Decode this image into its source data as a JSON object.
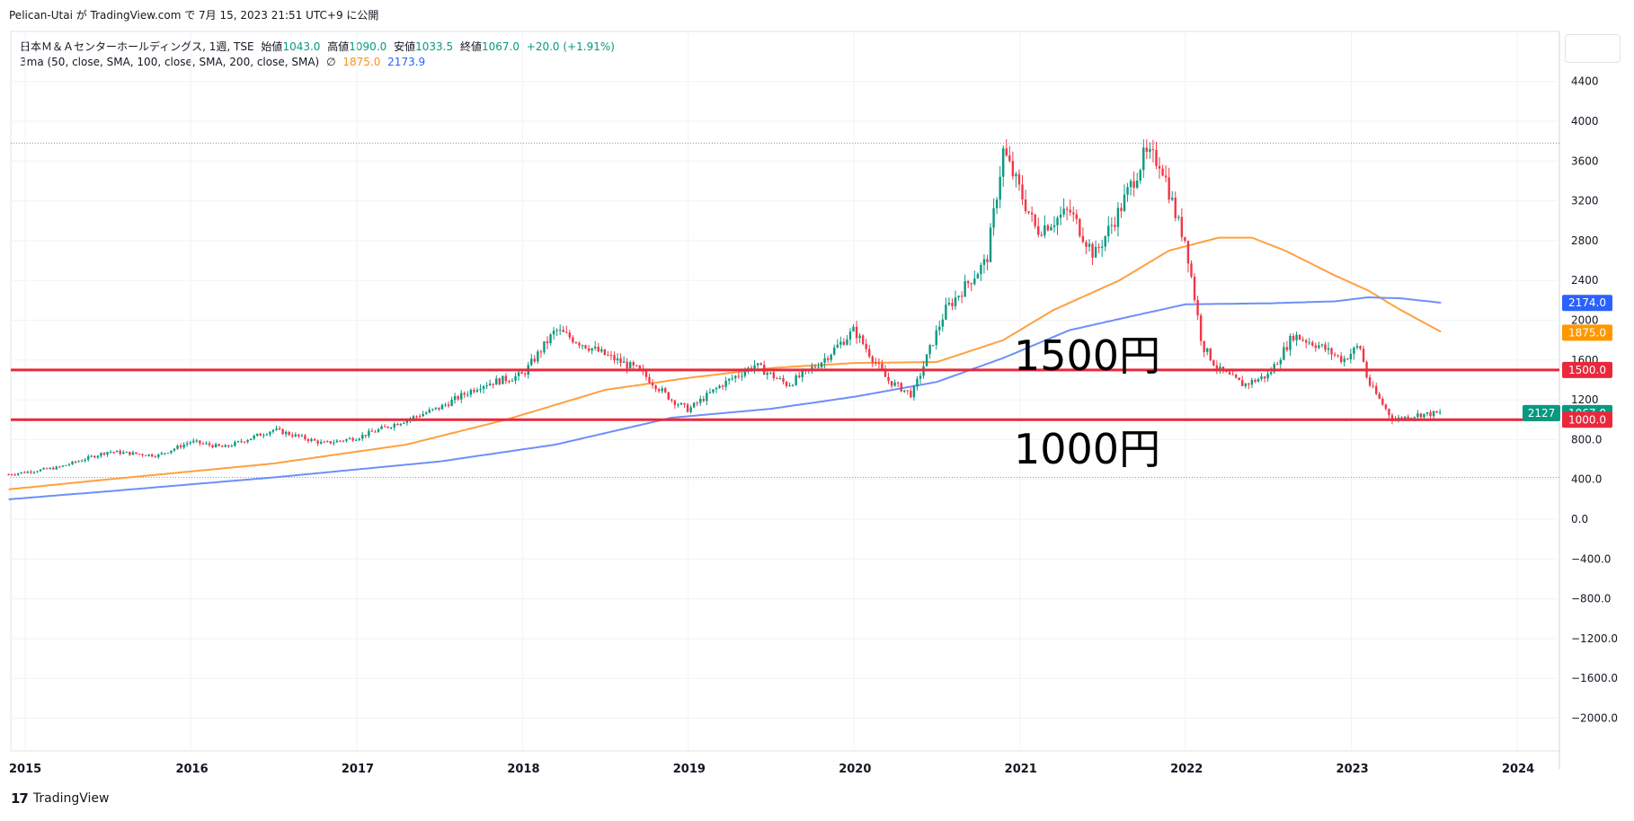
{
  "header": {
    "text": "Pelican-Utai が TradingView.com で 7月 15, 2023 21:51 UTC+9 に公開"
  },
  "legend": {
    "symbol": "日本Ｍ＆Ａセンターホールディングス, 1週, TSE",
    "open_label": "始値",
    "open": "1043.0",
    "high_label": "高値",
    "high": "1090.0",
    "low_label": "安値",
    "low": "1033.5",
    "close_label": "終値",
    "close": "1067.0",
    "change": "+20.0 (+1.91%)",
    "ma_title": "3ma (50, close, SMA, 100, close, SMA, 200, close, SMA)",
    "ma_icon": "∅",
    "ma1": "1875.0",
    "ma2": "2173.9"
  },
  "annotations": {
    "level1500": "1500円",
    "level1000": "1000円"
  },
  "footer": {
    "brand": "TradingView",
    "logo": "17"
  },
  "colors": {
    "up": "#089981",
    "down": "#f23645",
    "ma_orange": "#ffa040",
    "ma_blue": "#6e8ff8",
    "hline": "#e8293b",
    "grid": "#f0f3fa"
  },
  "chart_data": {
    "type": "candlestick",
    "title": "日本Ｍ＆Ａセンターホールディングス, 1週, TSE",
    "xlabel": "",
    "ylabel": "",
    "x_ticks": [
      "2015",
      "2016",
      "2017",
      "2018",
      "2019",
      "2020",
      "2021",
      "2022",
      "2023",
      "2024"
    ],
    "y_ticks": [
      4400,
      4000,
      3600,
      3200,
      2800,
      2400,
      2000,
      1600,
      1200,
      800,
      400,
      0,
      -400,
      -800,
      -1200,
      -1600,
      -2000
    ],
    "y_tick_labels": [
      "4400",
      "4000",
      "3600",
      "3200",
      "2800",
      "2400",
      "2000",
      "1600",
      "1200",
      "800.0",
      "400.0",
      "0.0",
      "−400.0",
      "−800.0",
      "−1200.0",
      "−1600.0",
      "−2000.0"
    ],
    "ylim": [
      -2400,
      4700
    ],
    "xlim": [
      2014.9,
      2024.3
    ],
    "price_path": [
      [
        2014.9,
        450
      ],
      [
        2015.2,
        520
      ],
      [
        2015.5,
        680
      ],
      [
        2015.8,
        640
      ],
      [
        2016.0,
        780
      ],
      [
        2016.2,
        720
      ],
      [
        2016.5,
        900
      ],
      [
        2016.8,
        760
      ],
      [
        2017.0,
        820
      ],
      [
        2017.3,
        1000
      ],
      [
        2017.5,
        1120
      ],
      [
        2017.75,
        1350
      ],
      [
        2018.0,
        1450
      ],
      [
        2018.2,
        1900
      ],
      [
        2018.5,
        1650
      ],
      [
        2018.7,
        1500
      ],
      [
        2018.9,
        1200
      ],
      [
        2019.0,
        1100
      ],
      [
        2019.2,
        1350
      ],
      [
        2019.4,
        1550
      ],
      [
        2019.6,
        1350
      ],
      [
        2019.8,
        1580
      ],
      [
        2020.0,
        1900
      ],
      [
        2020.2,
        1400
      ],
      [
        2020.35,
        1250
      ],
      [
        2020.55,
        2100
      ],
      [
        2020.8,
        2600
      ],
      [
        2020.9,
        3700
      ],
      [
        2021.1,
        2900
      ],
      [
        2021.3,
        3100
      ],
      [
        2021.45,
        2650
      ],
      [
        2021.6,
        3100
      ],
      [
        2021.75,
        3650
      ],
      [
        2021.85,
        3600
      ],
      [
        2021.95,
        3000
      ],
      [
        2022.0,
        2800
      ],
      [
        2022.1,
        1750
      ],
      [
        2022.2,
        1500
      ],
      [
        2022.35,
        1350
      ],
      [
        2022.5,
        1450
      ],
      [
        2022.65,
        1850
      ],
      [
        2022.8,
        1750
      ],
      [
        2022.95,
        1600
      ],
      [
        2023.05,
        1750
      ],
      [
        2023.1,
        1380
      ],
      [
        2023.25,
        1000
      ],
      [
        2023.4,
        1050
      ],
      [
        2023.55,
        1067
      ]
    ],
    "series": [
      {
        "name": "",
        "color": "#ffa040",
        "points": [
          [
            2014.9,
            300
          ],
          [
            2015.5,
            400
          ],
          [
            2016.5,
            560
          ],
          [
            2017.3,
            750
          ],
          [
            2017.9,
            1000
          ],
          [
            2018.5,
            1300
          ],
          [
            2019.0,
            1420
          ],
          [
            2019.5,
            1520
          ],
          [
            2020.0,
            1570
          ],
          [
            2020.5,
            1580
          ],
          [
            2020.9,
            1800
          ],
          [
            2021.2,
            2100
          ],
          [
            2021.6,
            2400
          ],
          [
            2021.9,
            2700
          ],
          [
            2022.2,
            2830
          ],
          [
            2022.4,
            2830
          ],
          [
            2022.6,
            2700
          ],
          [
            2022.9,
            2450
          ],
          [
            2023.1,
            2300
          ],
          [
            2023.3,
            2100
          ],
          [
            2023.55,
            1875
          ]
        ]
      },
      {
        "name": "",
        "color": "#6e8ff8",
        "points": [
          [
            2014.9,
            200
          ],
          [
            2015.5,
            280
          ],
          [
            2016.5,
            420
          ],
          [
            2017.5,
            580
          ],
          [
            2018.2,
            750
          ],
          [
            2018.9,
            1020
          ],
          [
            2019.5,
            1110
          ],
          [
            2020.0,
            1230
          ],
          [
            2020.5,
            1380
          ],
          [
            2020.9,
            1620
          ],
          [
            2021.3,
            1900
          ],
          [
            2021.7,
            2050
          ],
          [
            2022.0,
            2160
          ],
          [
            2022.5,
            2170
          ],
          [
            2022.9,
            2190
          ],
          [
            2023.1,
            2230
          ],
          [
            2023.3,
            2220
          ],
          [
            2023.55,
            2174
          ]
        ]
      }
    ],
    "horizontal_lines": [
      1500,
      1000
    ],
    "price_labels": [
      {
        "value": 2174,
        "text": "2174.0",
        "color": "#2962ff"
      },
      {
        "value": 1875,
        "text": "1875.0",
        "color": "#ff9800"
      },
      {
        "value": 1500,
        "text": "1500.0",
        "color": "#e8293b"
      },
      {
        "value": 1067,
        "text": "1067.0",
        "color": "#089981",
        "countdown": "2127"
      },
      {
        "value": 1000,
        "text": "1000.0",
        "color": "#e8293b"
      }
    ],
    "dotted_levels": [
      3780,
      420
    ]
  }
}
